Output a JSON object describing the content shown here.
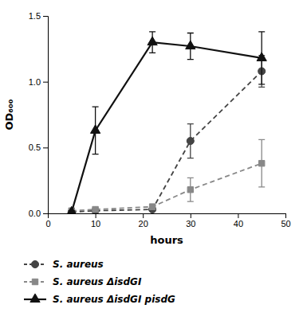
{
  "chart_data": {
    "type": "line",
    "xlabel": "hours",
    "ylabel": "OD₆₀₀",
    "x": [
      5,
      10,
      22,
      30,
      45
    ],
    "series": [
      {
        "name": "S. aureus",
        "color": "#444444",
        "marker": "circle",
        "line_style": "dashed",
        "values": [
          0.01,
          0.02,
          0.03,
          0.55,
          1.08
        ],
        "errors": [
          0.01,
          0.01,
          0.01,
          0.13,
          0.12
        ]
      },
      {
        "name": "S. aureus ΔisdGI",
        "color": "#888888",
        "marker": "square",
        "line_style": "dashed",
        "values": [
          0.02,
          0.03,
          0.05,
          0.18,
          0.38
        ],
        "errors": [
          0.01,
          0.01,
          0.02,
          0.09,
          0.18
        ]
      },
      {
        "name": "S. aureus ΔisdGI pisdG",
        "color": "#111111",
        "marker": "triangle",
        "line_style": "solid",
        "values": [
          0.01,
          0.63,
          1.3,
          1.27,
          1.18
        ],
        "errors": [
          0.01,
          0.18,
          0.08,
          0.1,
          0.2
        ]
      }
    ],
    "xlim": [
      0,
      50
    ],
    "ylim": [
      0.0,
      1.5
    ],
    "xticks": [
      0,
      10,
      20,
      30,
      40,
      50
    ],
    "yticks": [
      {
        "value": 0.0,
        "label": "0.0"
      },
      0.5,
      {
        "value": 1.0,
        "label": "1.0"
      },
      1.5
    ],
    "grid": false,
    "legend": "bottom"
  }
}
